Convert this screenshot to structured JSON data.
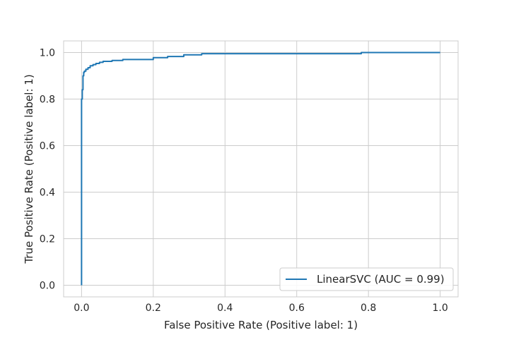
{
  "chart_data": {
    "type": "line",
    "title": "",
    "xlabel": "False Positive Rate (Positive label: 1)",
    "ylabel": "True Positive Rate (Positive label: 1)",
    "xlim": [
      -0.05,
      1.05
    ],
    "ylim": [
      -0.05,
      1.05
    ],
    "xticks": [
      0.0,
      0.2,
      0.4,
      0.6,
      0.8,
      1.0
    ],
    "xtick_labels": [
      "0.0",
      "0.2",
      "0.4",
      "0.6",
      "0.8",
      "1.0"
    ],
    "yticks": [
      0.0,
      0.2,
      0.4,
      0.6,
      0.8,
      1.0
    ],
    "ytick_labels": [
      "0.0",
      "0.2",
      "0.4",
      "0.6",
      "0.8",
      "1.0"
    ],
    "grid": true,
    "legend_position": "lower-right",
    "series": [
      {
        "name": "LinearSVC (AUC = 0.99)",
        "color": "#1f77b4",
        "x": [
          0.0,
          0.0,
          0.002,
          0.002,
          0.004,
          0.004,
          0.006,
          0.006,
          0.008,
          0.008,
          0.012,
          0.012,
          0.018,
          0.018,
          0.024,
          0.024,
          0.032,
          0.032,
          0.04,
          0.04,
          0.05,
          0.05,
          0.06,
          0.06,
          0.085,
          0.085,
          0.115,
          0.115,
          0.2,
          0.2,
          0.24,
          0.24,
          0.285,
          0.285,
          0.335,
          0.335,
          0.78,
          0.78,
          1.0
        ],
        "y": [
          0.0,
          0.8,
          0.8,
          0.84,
          0.84,
          0.9,
          0.9,
          0.915,
          0.915,
          0.92,
          0.92,
          0.928,
          0.928,
          0.935,
          0.935,
          0.943,
          0.943,
          0.948,
          0.948,
          0.953,
          0.953,
          0.958,
          0.958,
          0.962,
          0.962,
          0.966,
          0.966,
          0.97,
          0.97,
          0.978,
          0.978,
          0.983,
          0.983,
          0.99,
          0.99,
          0.995,
          0.995,
          1.0,
          1.0
        ]
      }
    ]
  }
}
